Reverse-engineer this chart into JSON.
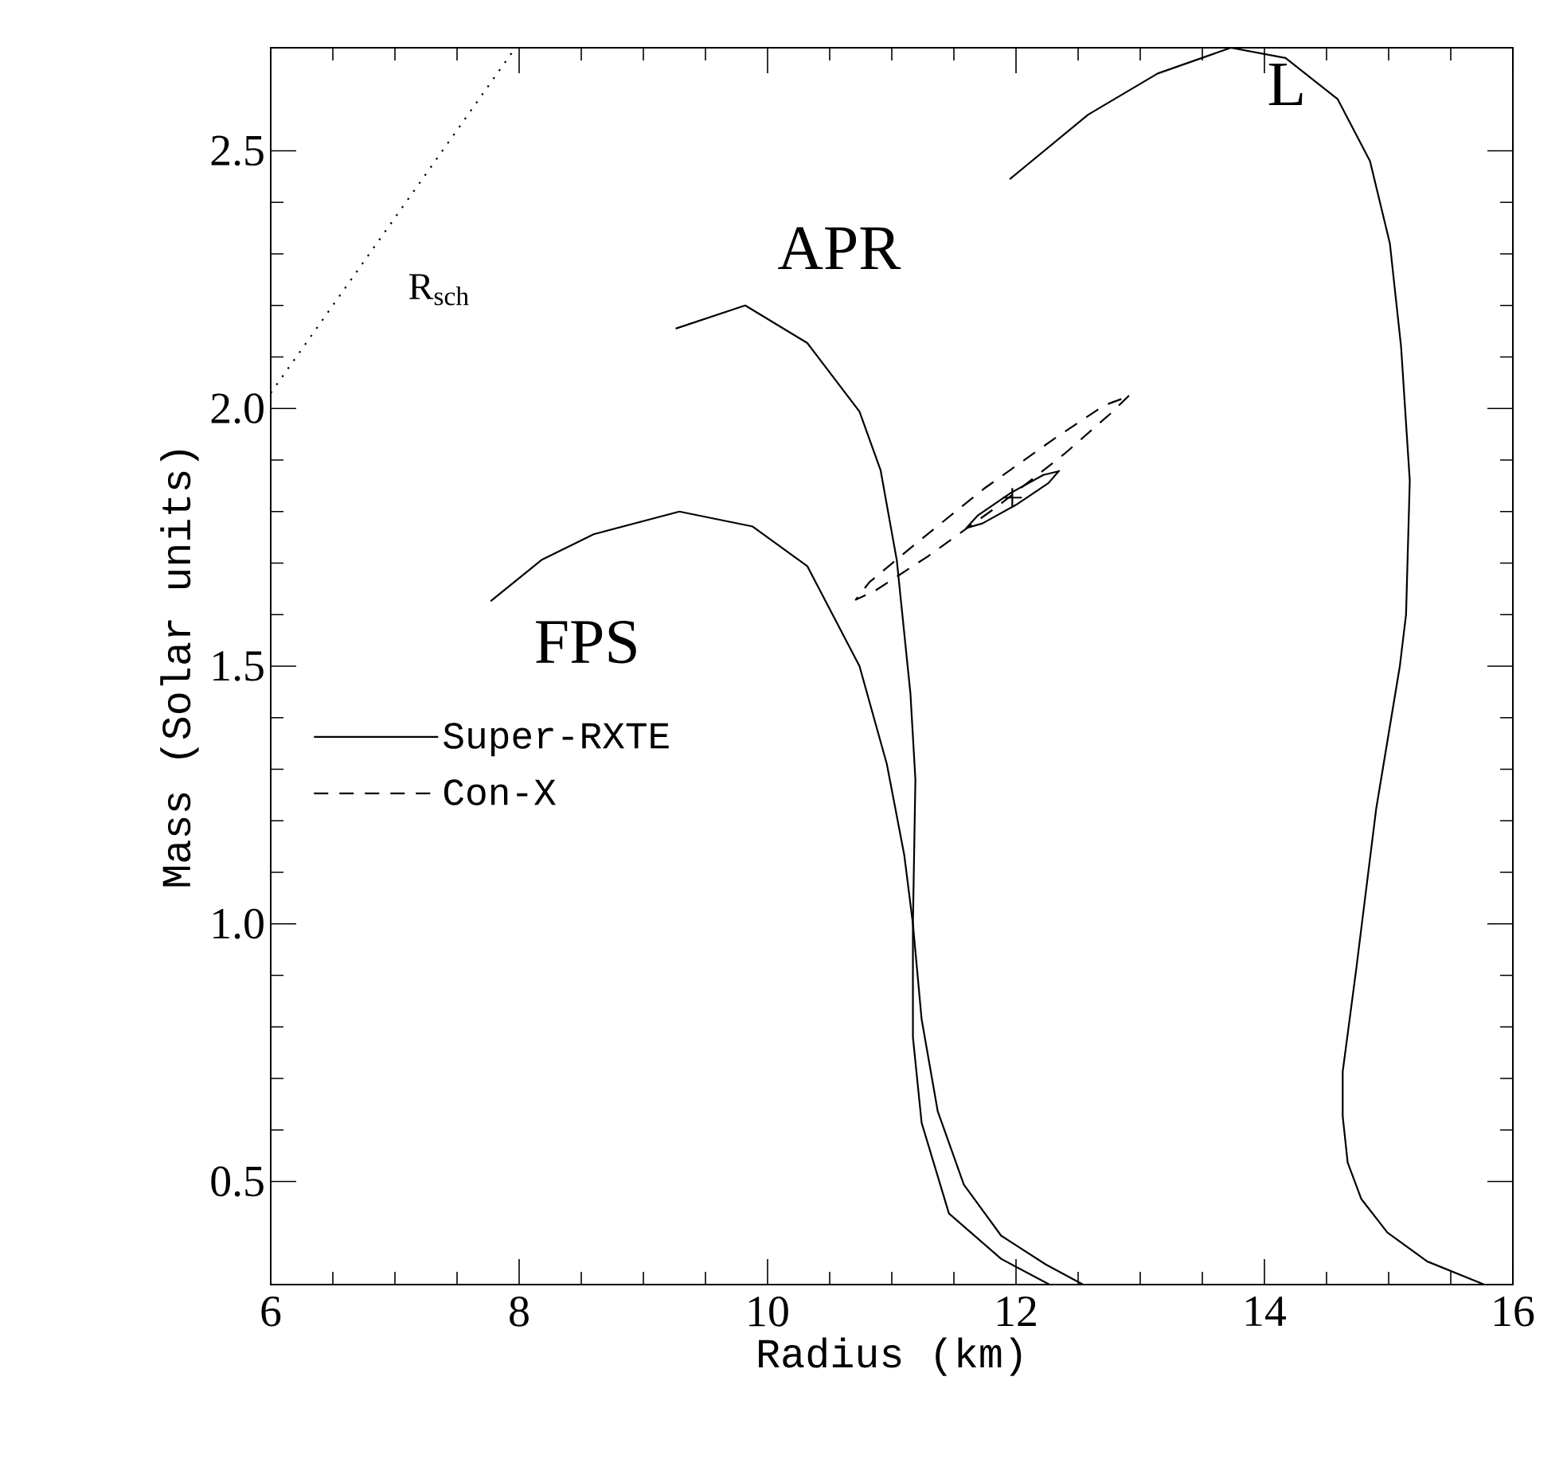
{
  "chart_data": {
    "type": "line",
    "xlabel": "Radius (km)",
    "ylabel": "Mass (Solar units)",
    "xlim": [
      6,
      16
    ],
    "ylim": [
      0.3,
      2.7
    ],
    "xticks": [
      6,
      8,
      10,
      12,
      14,
      16
    ],
    "yticks": [
      {
        "value": 0.5,
        "label": "0.5"
      },
      {
        "value": 1.0,
        "label": "1.0"
      },
      {
        "value": 1.5,
        "label": "1.5"
      },
      {
        "value": 2.0,
        "label": "2.0"
      },
      {
        "value": 2.5,
        "label": "2.5"
      }
    ],
    "grid": false,
    "legend": "left",
    "series": [
      {
        "name": "FPS",
        "color": "#000000",
        "line_style": "solid",
        "x": [
          7.77,
          8.18,
          8.6,
          9.29,
          9.88,
          10.32,
          10.74,
          10.96,
          11.1,
          11.17,
          11.24,
          11.37,
          11.58,
          11.88,
          12.24,
          12.54
        ],
        "values": [
          1.626,
          1.706,
          1.756,
          1.8,
          1.771,
          1.694,
          1.5,
          1.31,
          1.134,
          1.0,
          0.815,
          0.636,
          0.494,
          0.395,
          0.339,
          0.3
        ]
      },
      {
        "name": "APR",
        "color": "#000000",
        "line_style": "solid",
        "x": [
          9.26,
          9.82,
          10.32,
          10.74,
          10.91,
          11.04,
          11.15,
          11.19,
          11.17,
          11.17,
          11.24,
          11.46,
          11.88,
          12.27
        ],
        "values": [
          2.155,
          2.2,
          2.127,
          1.994,
          1.88,
          1.706,
          1.447,
          1.28,
          1.0,
          0.78,
          0.614,
          0.438,
          0.35,
          0.3
        ]
      },
      {
        "name": "L",
        "color": "#000000",
        "line_style": "solid",
        "x": [
          11.95,
          12.58,
          13.14,
          13.73,
          14.17,
          14.59,
          14.85,
          15.01,
          15.1,
          15.17,
          15.14,
          15.09,
          14.9,
          14.74,
          14.63,
          14.63,
          14.67,
          14.78,
          14.99,
          15.31,
          15.77
        ],
        "values": [
          2.445,
          2.57,
          2.65,
          2.7,
          2.68,
          2.6,
          2.48,
          2.32,
          2.12,
          1.86,
          1.6,
          1.5,
          1.224,
          0.914,
          0.713,
          0.627,
          0.537,
          0.466,
          0.401,
          0.345,
          0.3
        ]
      },
      {
        "name": "R$_{sch}$",
        "color": "#000000",
        "line_style": "dotted",
        "x": [
          6,
          7.97
        ],
        "values": [
          2.03,
          2.7
        ]
      },
      {
        "name": "Super-RXTE",
        "color": "#000000",
        "line_style": "solid",
        "x": [
          12.35,
          12.26,
          12.0,
          11.73,
          11.6,
          11.69,
          11.95,
          12.22,
          12.34
        ],
        "values": [
          1.88,
          1.855,
          1.813,
          1.777,
          1.768,
          1.792,
          1.835,
          1.871,
          1.878
        ]
      },
      {
        "name": "Con-X",
        "color": "#000000",
        "line_style": "dashed",
        "x": [
          12.91,
          12.76,
          12.39,
          11.85,
          11.29,
          10.87,
          10.71,
          10.82,
          11.21,
          11.74,
          12.3,
          12.71,
          12.89
        ],
        "values": [
          2.025,
          1.99,
          1.912,
          1.81,
          1.713,
          1.647,
          1.629,
          1.663,
          1.741,
          1.844,
          1.94,
          2.006,
          2.022
        ]
      },
      {
        "type": "scatter",
        "color": "#000000",
        "marker": "cross",
        "x": [
          11.97
        ],
        "values": [
          1.827
        ]
      }
    ]
  }
}
